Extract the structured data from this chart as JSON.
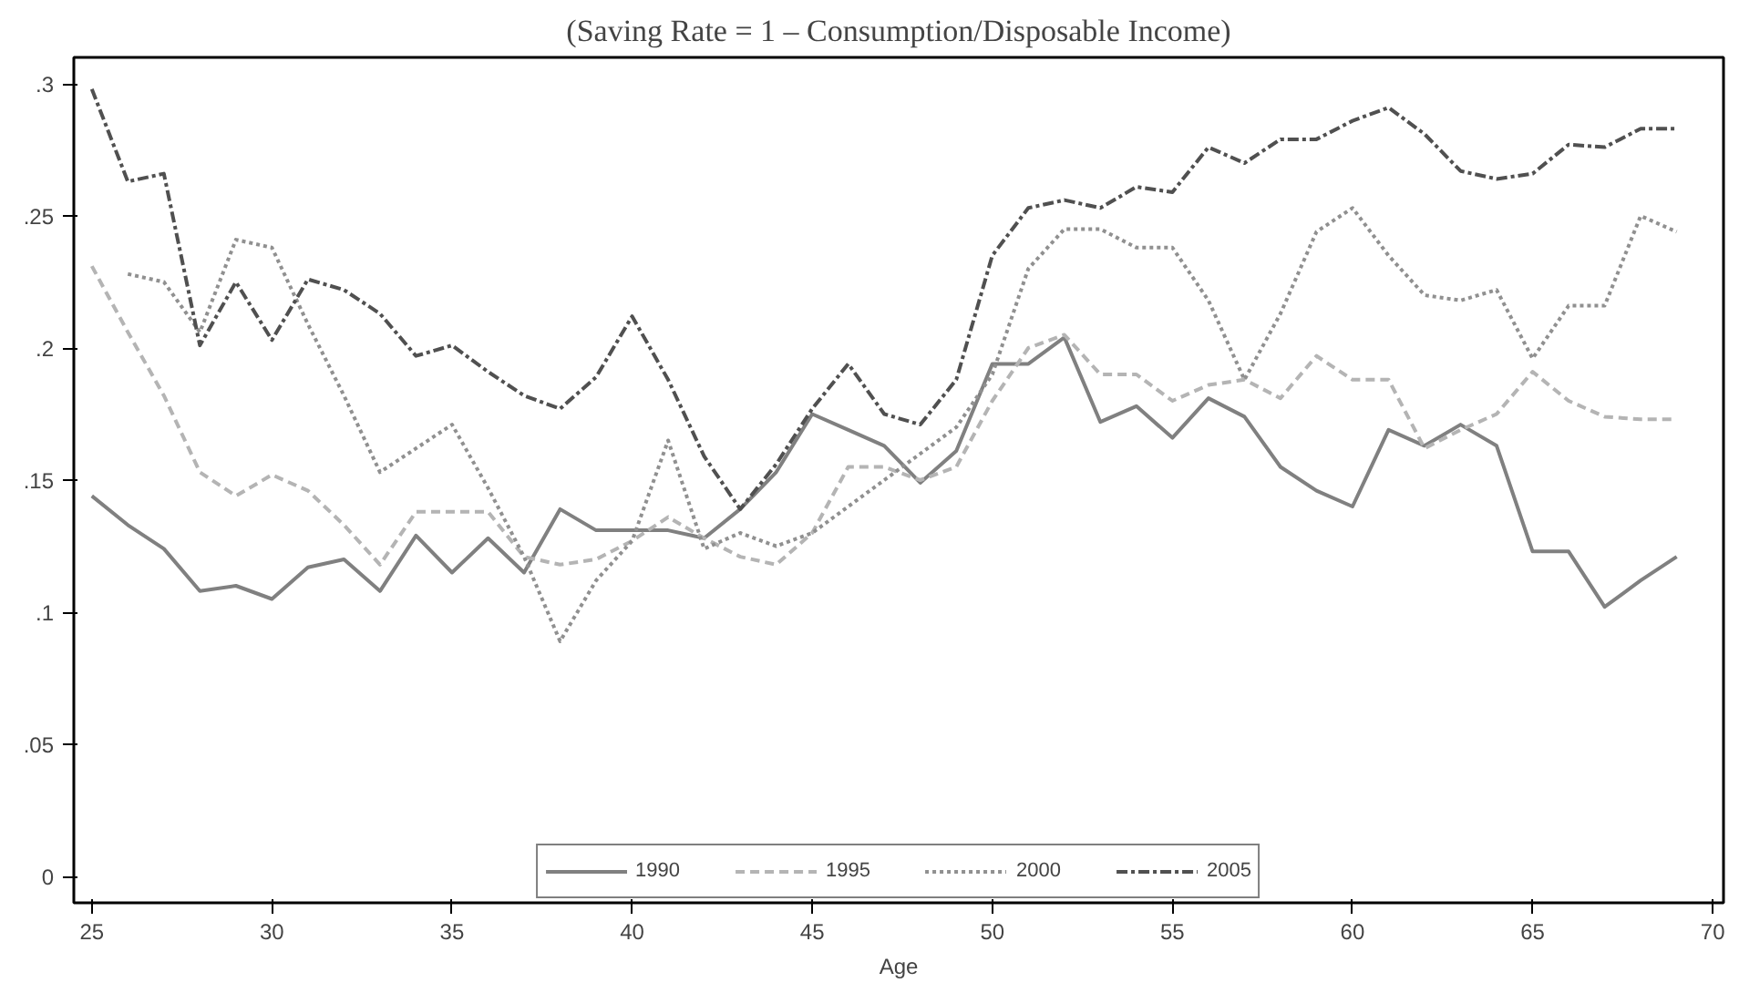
{
  "chart_data": {
    "type": "line",
    "title": "(Saving Rate = 1 – Consumption/Disposable Income)",
    "xlabel": "Age",
    "x": [
      25,
      26,
      27,
      28,
      29,
      30,
      31,
      32,
      33,
      34,
      35,
      36,
      37,
      38,
      39,
      40,
      41,
      42,
      43,
      44,
      45,
      46,
      47,
      48,
      49,
      50,
      51,
      52,
      53,
      54,
      55,
      56,
      57,
      58,
      59,
      60,
      61,
      62,
      63,
      64,
      65,
      66,
      67,
      68,
      69
    ],
    "series": [
      {
        "name": "1990",
        "color": "#808080",
        "line_style": "solid",
        "values": [
          0.144,
          0.133,
          0.124,
          0.108,
          0.11,
          0.105,
          0.117,
          0.12,
          0.108,
          0.129,
          0.115,
          0.128,
          0.115,
          0.139,
          0.131,
          0.131,
          0.131,
          0.128,
          0.139,
          0.153,
          0.175,
          0.169,
          0.163,
          0.149,
          0.161,
          0.194,
          0.194,
          0.204,
          0.172,
          0.178,
          0.166,
          0.181,
          0.174,
          0.155,
          0.146,
          0.14,
          0.169,
          0.163,
          0.171,
          0.163,
          0.123,
          0.123,
          0.102,
          0.112,
          0.121
        ]
      },
      {
        "name": "1995",
        "color": "#b4b4b4",
        "line_style": "dashed",
        "values": [
          0.231,
          0.206,
          0.182,
          0.153,
          0.144,
          0.152,
          0.146,
          0.133,
          0.118,
          0.138,
          0.138,
          0.138,
          0.121,
          0.118,
          0.12,
          0.127,
          0.136,
          0.128,
          0.121,
          0.118,
          0.13,
          0.155,
          0.155,
          0.15,
          0.155,
          0.18,
          0.2,
          0.205,
          0.19,
          0.19,
          0.18,
          0.186,
          0.188,
          0.181,
          0.197,
          0.188,
          0.188,
          0.162,
          0.169,
          0.175,
          0.191,
          0.18,
          0.174,
          0.173,
          0.173
        ]
      },
      {
        "name": "2000",
        "color": "#909090",
        "line_style": "dotted",
        "values": [
          null,
          0.228,
          0.225,
          0.206,
          0.241,
          0.238,
          0.209,
          0.182,
          0.153,
          0.162,
          0.171,
          0.147,
          0.121,
          0.089,
          0.112,
          0.127,
          0.165,
          0.124,
          0.13,
          0.125,
          0.13,
          0.14,
          0.15,
          0.16,
          0.17,
          0.19,
          0.23,
          0.245,
          0.245,
          0.238,
          0.238,
          0.218,
          0.188,
          0.213,
          0.244,
          0.253,
          0.235,
          0.22,
          0.218,
          0.222,
          0.196,
          0.216,
          0.216,
          0.25,
          0.244
        ]
      },
      {
        "name": "2005",
        "color": "#505050",
        "line_style": "dashdot",
        "values": [
          0.298,
          0.263,
          0.266,
          0.201,
          0.225,
          0.203,
          0.226,
          0.222,
          0.213,
          0.197,
          0.201,
          0.191,
          0.182,
          0.177,
          0.189,
          0.212,
          0.188,
          0.159,
          0.139,
          0.156,
          0.177,
          0.194,
          0.175,
          0.171,
          0.188,
          0.235,
          0.253,
          0.256,
          0.253,
          0.261,
          0.259,
          0.276,
          0.27,
          0.279,
          0.279,
          0.286,
          0.291,
          0.281,
          0.267,
          0.264,
          0.266,
          0.277,
          0.276,
          0.283,
          0.283
        ]
      }
    ],
    "xlim": [
      24.5,
      70.3
    ],
    "ylim": [
      -0.01,
      0.31
    ],
    "xticks": [
      25,
      30,
      35,
      40,
      45,
      50,
      55,
      60,
      65,
      70
    ],
    "yticks": [
      0,
      {
        "value": 0.05,
        "label": ".05"
      },
      {
        "value": 0.1,
        "label": ".1"
      },
      {
        "value": 0.15,
        "label": ".15"
      },
      {
        "value": 0.2,
        "label": ".2"
      },
      {
        "value": 0.25,
        "label": ".25"
      },
      {
        "value": 0.3,
        "label": ".3"
      }
    ],
    "grid": false,
    "legend": "bottom"
  }
}
